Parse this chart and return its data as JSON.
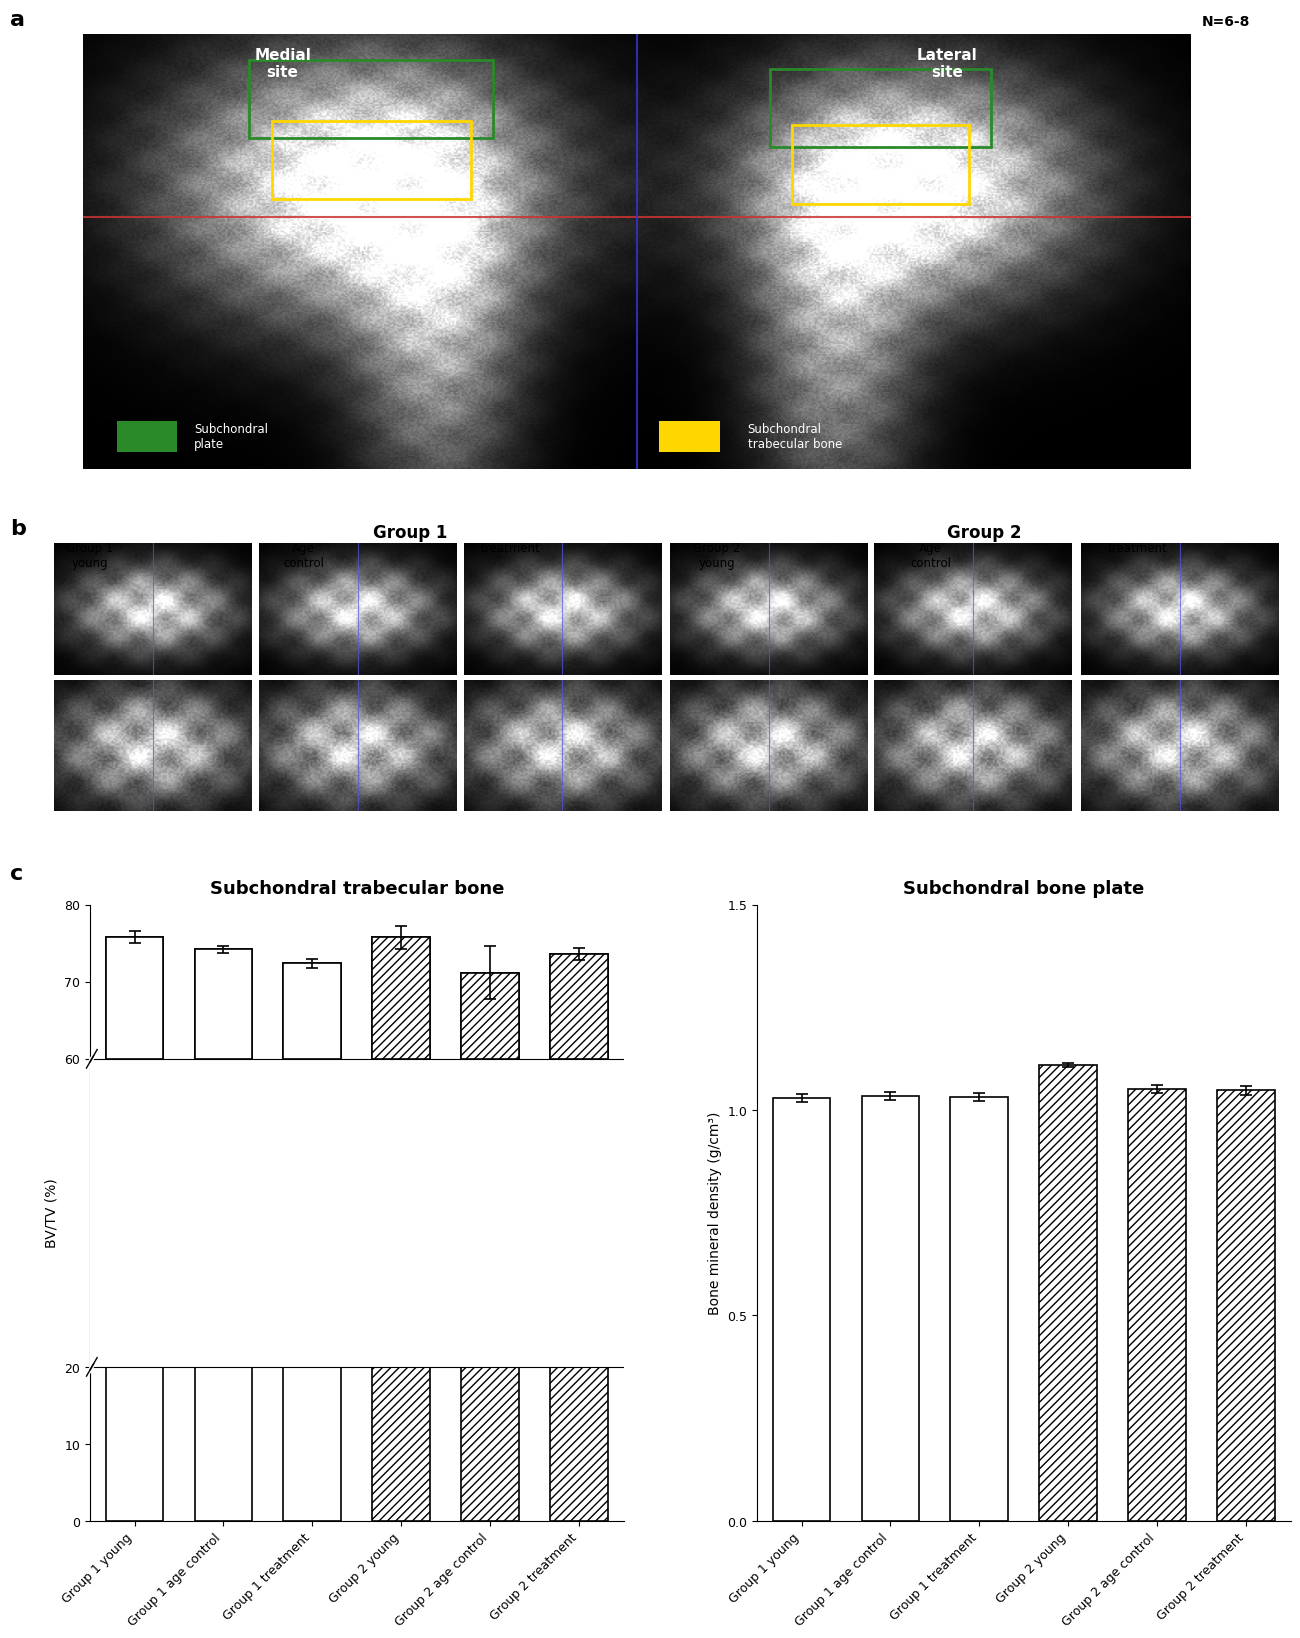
{
  "panel_a_label": "a",
  "panel_b_label": "b",
  "panel_c_label": "c",
  "medial_site": "Medial\nsite",
  "lateral_site": "Lateral\nsite",
  "n_label": "N=6-8",
  "subchondral_plate_label": "Subchondral\nplate",
  "subchondral_trabecular_label": "Subchondral\ntrabecular bone",
  "group1_label": "Group 1",
  "group2_label": "Group 2",
  "b_col_labels": [
    "Group 1\nyoung",
    "Age\ncontrol",
    "treatment",
    "Group 2\nyoung",
    "Age\ncontrol",
    "treatment"
  ],
  "bvtv_title": "Subchondral trabecular bone",
  "bmd_title": "Subchondral bone plate",
  "bvtv_ylabel": "BV/TV (%)",
  "bmd_ylabel": "Bone mineral density (g/cm³)",
  "groups": [
    "Group 1 young",
    "Group 1 age control",
    "Group 1 treatment",
    "Group 2 young",
    "Group 2 age control",
    "Group 2 treatment"
  ],
  "bvtv_values": [
    75.8,
    74.2,
    72.4,
    75.8,
    71.2,
    73.6
  ],
  "bvtv_errors": [
    0.8,
    0.5,
    0.6,
    1.5,
    3.5,
    0.8
  ],
  "bmd_values": [
    1.03,
    1.035,
    1.032,
    1.11,
    1.052,
    1.048
  ],
  "bmd_errors": [
    0.01,
    0.01,
    0.01,
    0.005,
    0.01,
    0.01
  ],
  "bvtv_ylim": [
    0,
    80
  ],
  "bvtv_yticks": [
    0,
    10,
    20,
    60,
    70,
    80
  ],
  "bvtv_ytick_labels": [
    "0",
    "10",
    "20",
    "60",
    "70",
    "80"
  ],
  "bmd_ylim": [
    0.0,
    1.5
  ],
  "bmd_yticks": [
    0.0,
    0.5,
    1.0,
    1.5
  ],
  "background_color": "white",
  "font_size_title": 13,
  "font_size_label": 10,
  "font_size_tick": 9,
  "font_size_panel": 16
}
